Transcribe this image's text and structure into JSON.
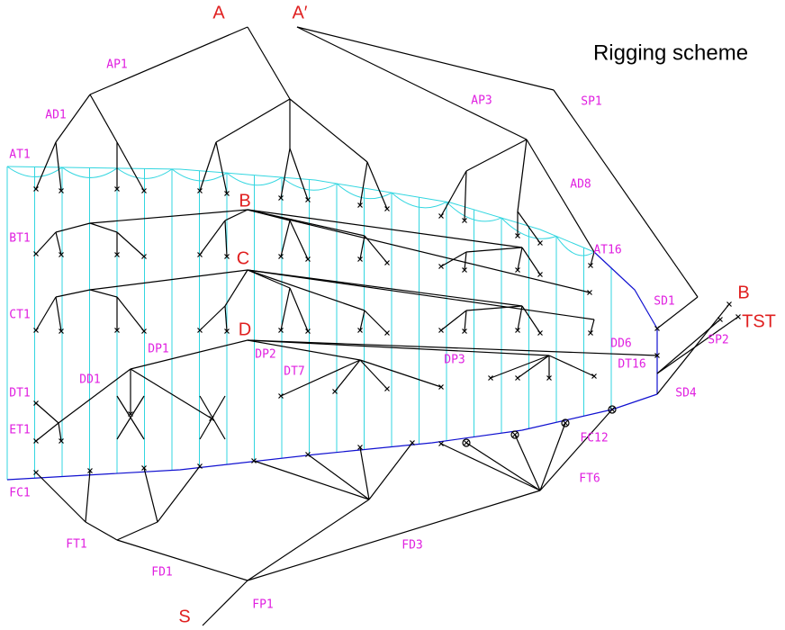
{
  "title": "Rigging scheme",
  "points": [
    "A",
    "A′",
    "B",
    "C",
    "D",
    "B",
    "TST",
    "S"
  ],
  "members": [
    "AP1",
    "AD1",
    "AT1",
    "AP3",
    "SP1",
    "AD8",
    "AT16",
    "BT1",
    "CT1",
    "SD1",
    "SP2",
    "DP1",
    "DP2",
    "DT7",
    "DP3",
    "DD6",
    "DT16",
    "SD4",
    "DD1",
    "DT1",
    "ET1",
    "FC12",
    "FC1",
    "FT6",
    "FT1",
    "FD3",
    "FD1",
    "FP1"
  ]
}
